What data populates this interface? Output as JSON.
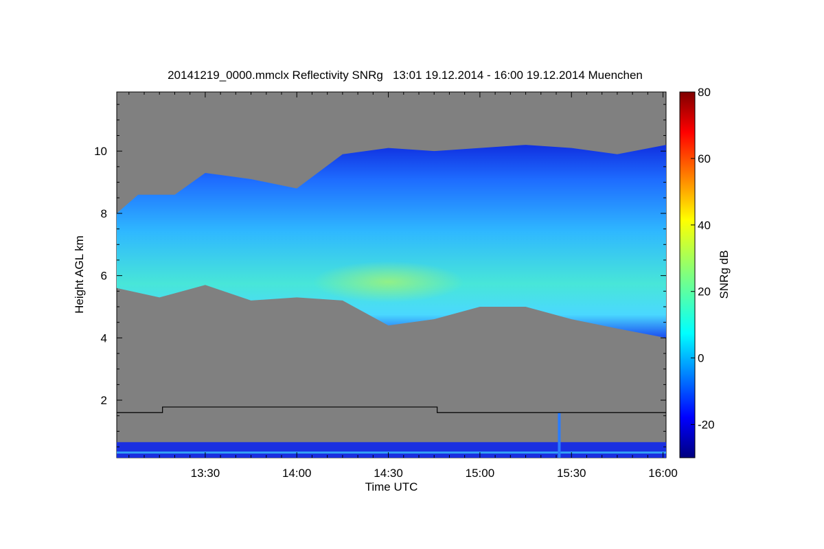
{
  "chart_data": {
    "type": "heatmap",
    "title": "20141219_0000.mmclx Reflectivity SNRg   13:01 19.12.2014 - 16:00 19.12.2014 Muenchen",
    "xlabel": "Time UTC",
    "ylabel": "Height AGL km",
    "x_ticks": [
      "13:30",
      "14:00",
      "14:30",
      "15:00",
      "15:30",
      "16:00"
    ],
    "x_tick_minutes": [
      30,
      60,
      90,
      120,
      150,
      180
    ],
    "xlim_minutes_after_13_00": [
      1,
      181
    ],
    "y_ticks": [
      "2",
      "4",
      "6",
      "8",
      "10"
    ],
    "y_tick_values": [
      2,
      4,
      6,
      8,
      10
    ],
    "ylim_km": [
      0.15,
      11.9
    ],
    "colorbar": {
      "label": "SNRg dB",
      "ticks": [
        "-20",
        "0",
        "20",
        "40",
        "60",
        "80"
      ],
      "tick_values": [
        -20,
        0,
        20,
        40,
        60,
        80
      ],
      "range": [
        -30,
        80
      ],
      "colormap": "jet"
    },
    "background_color": "#808080",
    "line": {
      "color": "#000000",
      "points": [
        [
          1,
          1.6
        ],
        [
          16,
          1.6
        ],
        [
          16,
          1.78
        ],
        [
          106,
          1.78
        ],
        [
          106,
          1.6
        ],
        [
          181,
          1.6
        ]
      ]
    },
    "cloud_layer": {
      "top_km": [
        [
          1,
          8.0
        ],
        [
          8,
          8.6
        ],
        [
          20,
          8.6
        ],
        [
          30,
          9.3
        ],
        [
          45,
          9.1
        ],
        [
          60,
          8.8
        ],
        [
          75,
          9.9
        ],
        [
          90,
          10.1
        ],
        [
          105,
          10.0
        ],
        [
          120,
          10.1
        ],
        [
          135,
          10.2
        ],
        [
          150,
          10.1
        ],
        [
          165,
          9.9
        ],
        [
          181,
          10.2
        ]
      ],
      "base_km": [
        [
          1,
          5.6
        ],
        [
          15,
          5.3
        ],
        [
          30,
          5.7
        ],
        [
          45,
          5.2
        ],
        [
          60,
          5.3
        ],
        [
          75,
          5.2
        ],
        [
          90,
          4.4
        ],
        [
          105,
          4.6
        ],
        [
          120,
          5.0
        ],
        [
          135,
          5.0
        ],
        [
          150,
          4.6
        ],
        [
          165,
          4.3
        ],
        [
          181,
          4.0
        ]
      ],
      "peak_snr_db": 25
    },
    "clutter_band_km": [
      0.15,
      0.65
    ],
    "spike_minutes": 146
  }
}
